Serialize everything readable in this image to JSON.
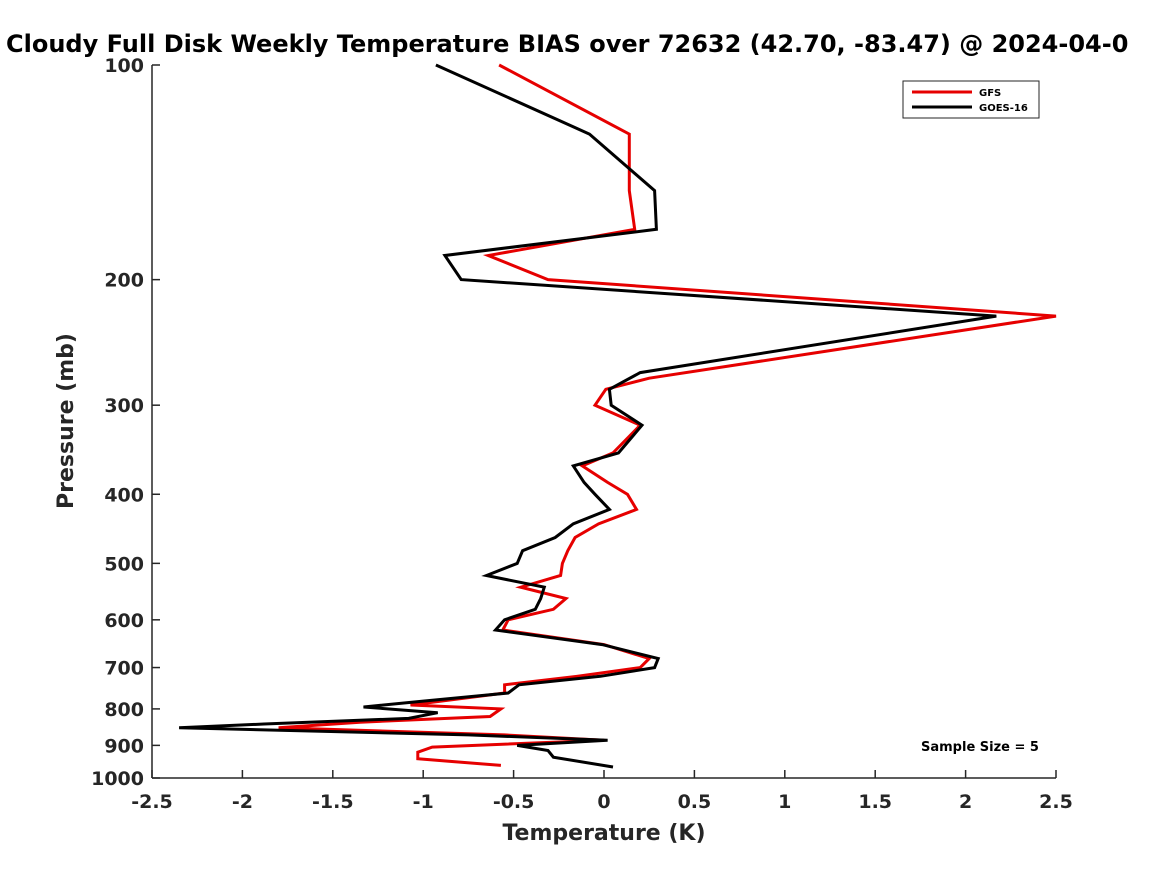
{
  "chart_data": {
    "type": "line",
    "title": "Cloudy Full Disk Weekly Temperature BIAS over 72632 (42.70, -83.47) @ 2024-04-0",
    "xlabel": "Temperature (K)",
    "ylabel": "Pressure (mb)",
    "xlim": [
      -2.5,
      2.5
    ],
    "ylim": [
      1000,
      100
    ],
    "yscale": "log",
    "yreverse": true,
    "xticks": [
      -2.5,
      -2,
      -1.5,
      -1,
      -0.5,
      0,
      0.5,
      1,
      1.5,
      2,
      2.5
    ],
    "xtick_labels": [
      "-2.5",
      "-2",
      "-1.5",
      "-1",
      "-0.5",
      "0",
      "0.5",
      "1",
      "1.5",
      "2",
      "2.5"
    ],
    "yticks": [
      100,
      200,
      300,
      400,
      500,
      600,
      700,
      800,
      900,
      1000
    ],
    "ytick_labels": [
      "100",
      "200",
      "300",
      "400",
      "500",
      "600",
      "700",
      "800",
      "900",
      "1000"
    ],
    "grid": false,
    "legend_position": "top-right",
    "annotation": "Sample Size = 5",
    "series": [
      {
        "name": "GFS",
        "color": "#e60000",
        "points": [
          [
            -0.58,
            100
          ],
          [
            0.14,
            125
          ],
          [
            0.14,
            150
          ],
          [
            0.17,
            170
          ],
          [
            -0.64,
            185
          ],
          [
            -0.31,
            200
          ],
          [
            2.5,
            225
          ],
          [
            0.25,
            275
          ],
          [
            0.01,
            285
          ],
          [
            -0.05,
            300
          ],
          [
            0.2,
            320
          ],
          [
            0.05,
            350
          ],
          [
            -0.12,
            365
          ],
          [
            0.02,
            385
          ],
          [
            0.13,
            400
          ],
          [
            0.18,
            420
          ],
          [
            -0.03,
            440
          ],
          [
            -0.16,
            460
          ],
          [
            -0.2,
            480
          ],
          [
            -0.23,
            500
          ],
          [
            -0.24,
            520
          ],
          [
            -0.46,
            540
          ],
          [
            -0.21,
            560
          ],
          [
            -0.28,
            580
          ],
          [
            -0.53,
            600
          ],
          [
            -0.56,
            620
          ],
          [
            0.0,
            650
          ],
          [
            0.25,
            680
          ],
          [
            0.2,
            700
          ],
          [
            -0.15,
            720
          ],
          [
            -0.55,
            740
          ],
          [
            -0.55,
            760
          ],
          [
            -1.07,
            790
          ],
          [
            -0.57,
            800
          ],
          [
            -0.63,
            820
          ],
          [
            -1.35,
            835
          ],
          [
            -1.8,
            850
          ],
          [
            -0.55,
            870
          ],
          [
            0.0,
            885
          ],
          [
            -0.95,
            905
          ],
          [
            -1.03,
            920
          ],
          [
            -1.03,
            940
          ],
          [
            -0.57,
            960
          ]
        ]
      },
      {
        "name": "GOES-16",
        "color": "#000000",
        "points": [
          [
            -0.93,
            100
          ],
          [
            -0.08,
            125
          ],
          [
            0.28,
            150
          ],
          [
            0.29,
            170
          ],
          [
            -0.88,
            185
          ],
          [
            -0.79,
            200
          ],
          [
            2.17,
            225
          ],
          [
            0.2,
            270
          ],
          [
            0.03,
            285
          ],
          [
            0.04,
            300
          ],
          [
            0.21,
            320
          ],
          [
            0.08,
            350
          ],
          [
            -0.17,
            365
          ],
          [
            -0.11,
            385
          ],
          [
            -0.05,
            400
          ],
          [
            0.03,
            420
          ],
          [
            -0.17,
            440
          ],
          [
            -0.27,
            460
          ],
          [
            -0.45,
            480
          ],
          [
            -0.48,
            500
          ],
          [
            -0.65,
            520
          ],
          [
            -0.33,
            540
          ],
          [
            -0.35,
            560
          ],
          [
            -0.38,
            580
          ],
          [
            -0.55,
            600
          ],
          [
            -0.6,
            620
          ],
          [
            -0.01,
            650
          ],
          [
            0.3,
            680
          ],
          [
            0.28,
            700
          ],
          [
            -0.02,
            720
          ],
          [
            -0.47,
            740
          ],
          [
            -0.53,
            760
          ],
          [
            -1.0,
            780
          ],
          [
            -1.33,
            795
          ],
          [
            -0.92,
            810
          ],
          [
            -1.08,
            825
          ],
          [
            -1.88,
            840
          ],
          [
            -2.35,
            850
          ],
          [
            -0.75,
            870
          ],
          [
            0.02,
            885
          ],
          [
            -0.48,
            900
          ],
          [
            -0.31,
            915
          ],
          [
            -0.28,
            935
          ],
          [
            0.05,
            965
          ]
        ]
      }
    ]
  }
}
